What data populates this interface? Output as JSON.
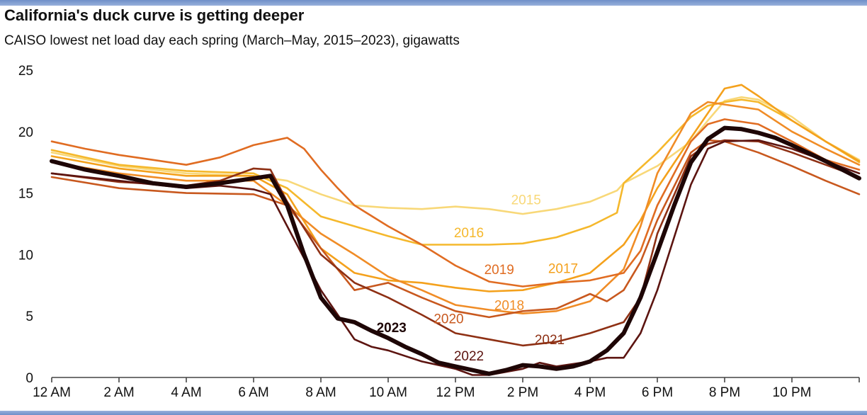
{
  "chart_data": {
    "type": "line",
    "title": "California's duck curve is getting deeper",
    "subtitle": "CAISO lowest net load day each spring (March–May, 2015–2023), gigawatts",
    "xlabel": "",
    "ylabel": "",
    "xlim": [
      0,
      24
    ],
    "ylim": [
      0,
      25
    ],
    "grid": false,
    "legend": "inline labels",
    "x_ticks": [
      {
        "value": 0,
        "label": "12 AM"
      },
      {
        "value": 2,
        "label": "2 AM"
      },
      {
        "value": 4,
        "label": "4 AM"
      },
      {
        "value": 6,
        "label": "6 AM"
      },
      {
        "value": 8,
        "label": "8 AM"
      },
      {
        "value": 10,
        "label": "10 AM"
      },
      {
        "value": 12,
        "label": "12 PM"
      },
      {
        "value": 14,
        "label": "2 PM"
      },
      {
        "value": 16,
        "label": "4 PM"
      },
      {
        "value": 18,
        "label": "6 PM"
      },
      {
        "value": 20,
        "label": "8 PM"
      },
      {
        "value": 22,
        "label": "10 PM"
      },
      {
        "value": 24,
        "label": ""
      }
    ],
    "y_ticks": [
      {
        "value": 0,
        "label": "0"
      },
      {
        "value": 5,
        "label": "5"
      },
      {
        "value": 10,
        "label": "10"
      },
      {
        "value": 15,
        "label": "15"
      },
      {
        "value": 20,
        "label": "20"
      },
      {
        "value": 25,
        "label": "25"
      }
    ],
    "series": [
      {
        "name": "2015",
        "color": "#f8d878",
        "width": 2.6,
        "bold": false,
        "label_at": [
          14.1,
          14.5
        ],
        "points": [
          [
            0,
            18.3
          ],
          [
            2,
            17.2
          ],
          [
            4,
            16.6
          ],
          [
            6,
            16.4
          ],
          [
            7,
            16.0
          ],
          [
            8,
            14.9
          ],
          [
            9,
            14.0
          ],
          [
            10,
            13.8
          ],
          [
            11,
            13.7
          ],
          [
            12,
            13.9
          ],
          [
            13,
            13.7
          ],
          [
            14,
            13.3
          ],
          [
            15,
            13.7
          ],
          [
            16,
            14.3
          ],
          [
            16.8,
            15.2
          ],
          [
            17,
            15.8
          ],
          [
            18,
            17.2
          ],
          [
            19,
            19.2
          ],
          [
            19.5,
            20.9
          ],
          [
            20,
            22.5
          ],
          [
            20.5,
            22.8
          ],
          [
            21,
            22.6
          ],
          [
            22,
            21.2
          ],
          [
            23,
            19.2
          ],
          [
            24,
            17.7
          ]
        ]
      },
      {
        "name": "2016",
        "color": "#f5b82c",
        "width": 2.6,
        "bold": false,
        "label_at": [
          12.4,
          11.8
        ],
        "points": [
          [
            0,
            18.5
          ],
          [
            2,
            17.3
          ],
          [
            4,
            16.8
          ],
          [
            6,
            16.6
          ],
          [
            7,
            15.4
          ],
          [
            8,
            13.1
          ],
          [
            9,
            12.3
          ],
          [
            10,
            11.5
          ],
          [
            11,
            10.8
          ],
          [
            12,
            10.8
          ],
          [
            13,
            10.8
          ],
          [
            14,
            10.9
          ],
          [
            15,
            11.4
          ],
          [
            16,
            12.3
          ],
          [
            16.8,
            13.4
          ],
          [
            17,
            15.8
          ],
          [
            18,
            18.3
          ],
          [
            19,
            21.2
          ],
          [
            19.5,
            22.1
          ],
          [
            20,
            22.4
          ],
          [
            20.5,
            22.6
          ],
          [
            21,
            22.4
          ],
          [
            22,
            20.9
          ],
          [
            23,
            19.2
          ],
          [
            24,
            17.5
          ]
        ]
      },
      {
        "name": "2017",
        "color": "#f4a11c",
        "width": 2.6,
        "bold": false,
        "label_at": [
          15.2,
          8.9
        ],
        "points": [
          [
            0,
            18.0
          ],
          [
            2,
            17.0
          ],
          [
            4,
            16.4
          ],
          [
            6,
            16.4
          ],
          [
            7,
            14.9
          ],
          [
            8,
            10.5
          ],
          [
            9,
            8.5
          ],
          [
            10,
            7.9
          ],
          [
            11,
            7.7
          ],
          [
            12,
            7.3
          ],
          [
            13,
            7.0
          ],
          [
            14,
            7.1
          ],
          [
            15,
            7.7
          ],
          [
            16,
            8.5
          ],
          [
            17,
            10.8
          ],
          [
            17.5,
            12.8
          ],
          [
            18,
            15.4
          ],
          [
            19,
            19.5
          ],
          [
            19.5,
            21.5
          ],
          [
            20,
            23.5
          ],
          [
            20.5,
            23.8
          ],
          [
            21,
            22.9
          ],
          [
            22,
            20.9
          ],
          [
            23,
            19.2
          ],
          [
            24,
            17.6
          ]
        ]
      },
      {
        "name": "2018",
        "color": "#f08c26",
        "width": 2.6,
        "bold": false,
        "label_at": [
          13.6,
          5.9
        ],
        "points": [
          [
            0,
            17.5
          ],
          [
            2,
            16.6
          ],
          [
            4,
            16.0
          ],
          [
            6,
            16.0
          ],
          [
            7,
            14.0
          ],
          [
            8,
            11.7
          ],
          [
            9,
            10.0
          ],
          [
            10,
            8.2
          ],
          [
            11,
            7.1
          ],
          [
            12,
            5.9
          ],
          [
            13,
            5.5
          ],
          [
            14,
            5.2
          ],
          [
            15,
            5.4
          ],
          [
            16,
            6.2
          ],
          [
            17,
            8.8
          ],
          [
            17.5,
            12.3
          ],
          [
            18,
            16.6
          ],
          [
            19,
            21.5
          ],
          [
            19.5,
            22.4
          ],
          [
            20,
            22.2
          ],
          [
            21,
            21.8
          ],
          [
            22,
            20.0
          ],
          [
            23,
            18.6
          ],
          [
            24,
            17.3
          ]
        ]
      },
      {
        "name": "2019",
        "color": "#e06c22",
        "width": 2.6,
        "bold": false,
        "label_at": [
          13.3,
          8.8
        ],
        "points": [
          [
            0,
            19.2
          ],
          [
            1,
            18.6
          ],
          [
            2,
            18.1
          ],
          [
            3,
            17.7
          ],
          [
            4,
            17.3
          ],
          [
            5,
            17.9
          ],
          [
            6,
            18.9
          ],
          [
            7,
            19.5
          ],
          [
            7.5,
            18.6
          ],
          [
            8,
            16.9
          ],
          [
            8.5,
            15.4
          ],
          [
            9,
            14.0
          ],
          [
            10,
            12.3
          ],
          [
            11,
            10.8
          ],
          [
            12,
            9.1
          ],
          [
            13,
            7.8
          ],
          [
            14,
            7.4
          ],
          [
            15,
            7.7
          ],
          [
            16,
            7.9
          ],
          [
            17,
            8.5
          ],
          [
            17.5,
            10.3
          ],
          [
            18,
            14.0
          ],
          [
            19,
            19.2
          ],
          [
            19.5,
            20.6
          ],
          [
            20,
            21.0
          ],
          [
            21,
            20.6
          ],
          [
            22,
            19.2
          ],
          [
            23,
            17.7
          ],
          [
            24,
            16.9
          ]
        ]
      },
      {
        "name": "2020",
        "color": "#c8581e",
        "width": 2.6,
        "bold": false,
        "label_at": [
          11.8,
          4.8
        ],
        "points": [
          [
            0,
            16.3
          ],
          [
            2,
            15.4
          ],
          [
            4,
            15.0
          ],
          [
            6,
            14.9
          ],
          [
            7,
            14.0
          ],
          [
            8,
            10.5
          ],
          [
            9,
            7.1
          ],
          [
            9.5,
            7.4
          ],
          [
            10,
            7.7
          ],
          [
            11,
            6.5
          ],
          [
            12,
            5.4
          ],
          [
            13,
            4.9
          ],
          [
            14,
            5.4
          ],
          [
            15,
            5.6
          ],
          [
            16,
            6.8
          ],
          [
            16.5,
            6.2
          ],
          [
            17,
            7.1
          ],
          [
            17.5,
            9.4
          ],
          [
            18,
            12.8
          ],
          [
            19,
            18.3
          ],
          [
            19.5,
            19.3
          ],
          [
            20,
            19.2
          ],
          [
            21,
            18.3
          ],
          [
            22,
            17.2
          ],
          [
            23,
            16.0
          ],
          [
            24,
            14.9
          ]
        ]
      },
      {
        "name": "2021",
        "color": "#8e3014",
        "width": 2.6,
        "bold": false,
        "label_at": [
          14.8,
          3.1
        ],
        "points": [
          [
            0,
            16.6
          ],
          [
            2,
            15.9
          ],
          [
            4,
            15.6
          ],
          [
            5,
            16.0
          ],
          [
            6,
            17.0
          ],
          [
            6.5,
            16.9
          ],
          [
            7,
            14.3
          ],
          [
            8,
            10.0
          ],
          [
            9,
            7.7
          ],
          [
            10,
            6.5
          ],
          [
            11,
            5.1
          ],
          [
            12,
            3.6
          ],
          [
            13,
            3.1
          ],
          [
            14,
            2.6
          ],
          [
            15,
            2.9
          ],
          [
            16,
            3.6
          ],
          [
            17,
            4.5
          ],
          [
            17.5,
            6.5
          ],
          [
            18,
            11.7
          ],
          [
            19,
            18.0
          ],
          [
            19.5,
            19.0
          ],
          [
            20,
            19.3
          ],
          [
            21,
            19.2
          ],
          [
            22,
            18.3
          ],
          [
            23,
            17.3
          ],
          [
            24,
            16.3
          ]
        ]
      },
      {
        "name": "2022",
        "color": "#5c1410",
        "width": 2.6,
        "bold": false,
        "label_at": [
          12.4,
          1.8
        ],
        "points": [
          [
            0,
            16.6
          ],
          [
            1,
            16.3
          ],
          [
            2,
            16.0
          ],
          [
            3,
            15.7
          ],
          [
            4,
            15.4
          ],
          [
            5,
            15.6
          ],
          [
            6,
            15.3
          ],
          [
            6.5,
            14.9
          ],
          [
            7,
            12.3
          ],
          [
            8,
            7.1
          ],
          [
            8.5,
            5.1
          ],
          [
            9,
            3.1
          ],
          [
            9.5,
            2.5
          ],
          [
            10,
            2.2
          ],
          [
            11,
            1.3
          ],
          [
            12,
            0.7
          ],
          [
            12.5,
            0.2
          ],
          [
            13,
            0.2
          ],
          [
            14,
            0.7
          ],
          [
            14.5,
            1.2
          ],
          [
            15,
            0.9
          ],
          [
            16,
            1.3
          ],
          [
            16.5,
            1.6
          ],
          [
            17,
            1.6
          ],
          [
            17.5,
            3.6
          ],
          [
            18,
            7.1
          ],
          [
            19,
            15.7
          ],
          [
            19.5,
            18.6
          ],
          [
            20,
            19.2
          ],
          [
            21,
            19.3
          ],
          [
            22,
            18.6
          ],
          [
            23,
            17.6
          ],
          [
            24,
            16.6
          ]
        ]
      },
      {
        "name": "2023",
        "color": "#1e0606",
        "width": 6,
        "bold": true,
        "label_at": [
          10.1,
          4.1
        ],
        "points": [
          [
            0,
            17.6
          ],
          [
            1,
            16.9
          ],
          [
            2,
            16.4
          ],
          [
            3,
            15.8
          ],
          [
            4,
            15.5
          ],
          [
            5,
            15.8
          ],
          [
            6,
            16.2
          ],
          [
            6.5,
            16.4
          ],
          [
            7,
            14.0
          ],
          [
            7.5,
            10.0
          ],
          [
            8,
            6.5
          ],
          [
            8.5,
            4.8
          ],
          [
            9,
            4.5
          ],
          [
            9.5,
            3.8
          ],
          [
            10,
            3.2
          ],
          [
            10.5,
            2.5
          ],
          [
            11,
            1.9
          ],
          [
            11.5,
            1.2
          ],
          [
            12,
            0.9
          ],
          [
            12.5,
            0.6
          ],
          [
            13,
            0.3
          ],
          [
            13.5,
            0.6
          ],
          [
            14,
            1.0
          ],
          [
            14.5,
            0.9
          ],
          [
            15,
            0.7
          ],
          [
            15.5,
            0.9
          ],
          [
            16,
            1.3
          ],
          [
            16.5,
            2.2
          ],
          [
            17,
            3.6
          ],
          [
            17.5,
            6.5
          ],
          [
            18,
            10.2
          ],
          [
            18.5,
            14.0
          ],
          [
            19,
            17.5
          ],
          [
            19.5,
            19.4
          ],
          [
            20,
            20.3
          ],
          [
            20.5,
            20.2
          ],
          [
            21,
            19.9
          ],
          [
            21.5,
            19.5
          ],
          [
            22,
            18.9
          ],
          [
            23,
            17.6
          ],
          [
            24,
            16.2
          ]
        ]
      }
    ]
  }
}
